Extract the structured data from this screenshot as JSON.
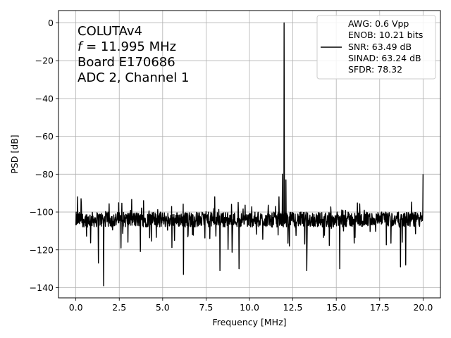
{
  "chart_data": {
    "type": "line",
    "xlabel": "Frequency [MHz]",
    "ylabel": "PSD [dB]",
    "xlim": [
      -1,
      21.0
    ],
    "ylim": [
      -145.4,
      6.5
    ],
    "xticks": [
      0.0,
      2.5,
      5.0,
      7.5,
      10.0,
      12.5,
      15.0,
      17.5,
      20.0
    ],
    "xtick_labels": [
      "0.0",
      "2.5",
      "5.0",
      "7.5",
      "10.0",
      "12.5",
      "15.0",
      "17.5",
      "20.0"
    ],
    "yticks": [
      0,
      -20,
      -40,
      -60,
      -80,
      -100,
      -120,
      -140
    ],
    "ytick_labels": [
      "0",
      "−20",
      "−40",
      "−60",
      "−80",
      "−100",
      "−120",
      "−140"
    ],
    "grid": true,
    "legend_placement": "top-right",
    "line_color": "#000000",
    "annotation": {
      "line1": "COLUTAv4",
      "line2_symbol": "f",
      "line2_rest": " = 11.995 MHz",
      "line3": "Board E170686",
      "line4": "ADC 2, Channel 1"
    },
    "legend": {
      "lines": [
        "AWG: 0.6 Vpp",
        "ENOB: 10.21 bits",
        "SNR: 63.49 dB",
        "SINAD: 63.24 dB",
        "SFDR: 78.32"
      ]
    },
    "series": [
      {
        "x_start": 0.0,
        "x_end": 20.0,
        "noise_floor_db": -104,
        "noise_spread_db": 8,
        "features": [
          {
            "x": 0.0,
            "y": -107
          },
          {
            "x": 0.1,
            "y": -92
          },
          {
            "x": 0.3,
            "y": -93
          },
          {
            "x": 1.3,
            "y": -127
          },
          {
            "x": 1.6,
            "y": -139
          },
          {
            "x": 3.9,
            "y": -94
          },
          {
            "x": 6.2,
            "y": -133
          },
          {
            "x": 8.0,
            "y": -92
          },
          {
            "x": 8.3,
            "y": -131
          },
          {
            "x": 9.4,
            "y": -130
          },
          {
            "x": 11.7,
            "y": -92
          },
          {
            "x": 11.9,
            "y": -80
          },
          {
            "x": 11.995,
            "y": 0
          },
          {
            "x": 12.1,
            "y": -83
          },
          {
            "x": 12.3,
            "y": -118
          },
          {
            "x": 13.3,
            "y": -131
          },
          {
            "x": 15.2,
            "y": -130
          },
          {
            "x": 18.7,
            "y": -129
          },
          {
            "x": 19.0,
            "y": -128
          },
          {
            "x": 20.0,
            "y": -80
          }
        ]
      }
    ]
  }
}
